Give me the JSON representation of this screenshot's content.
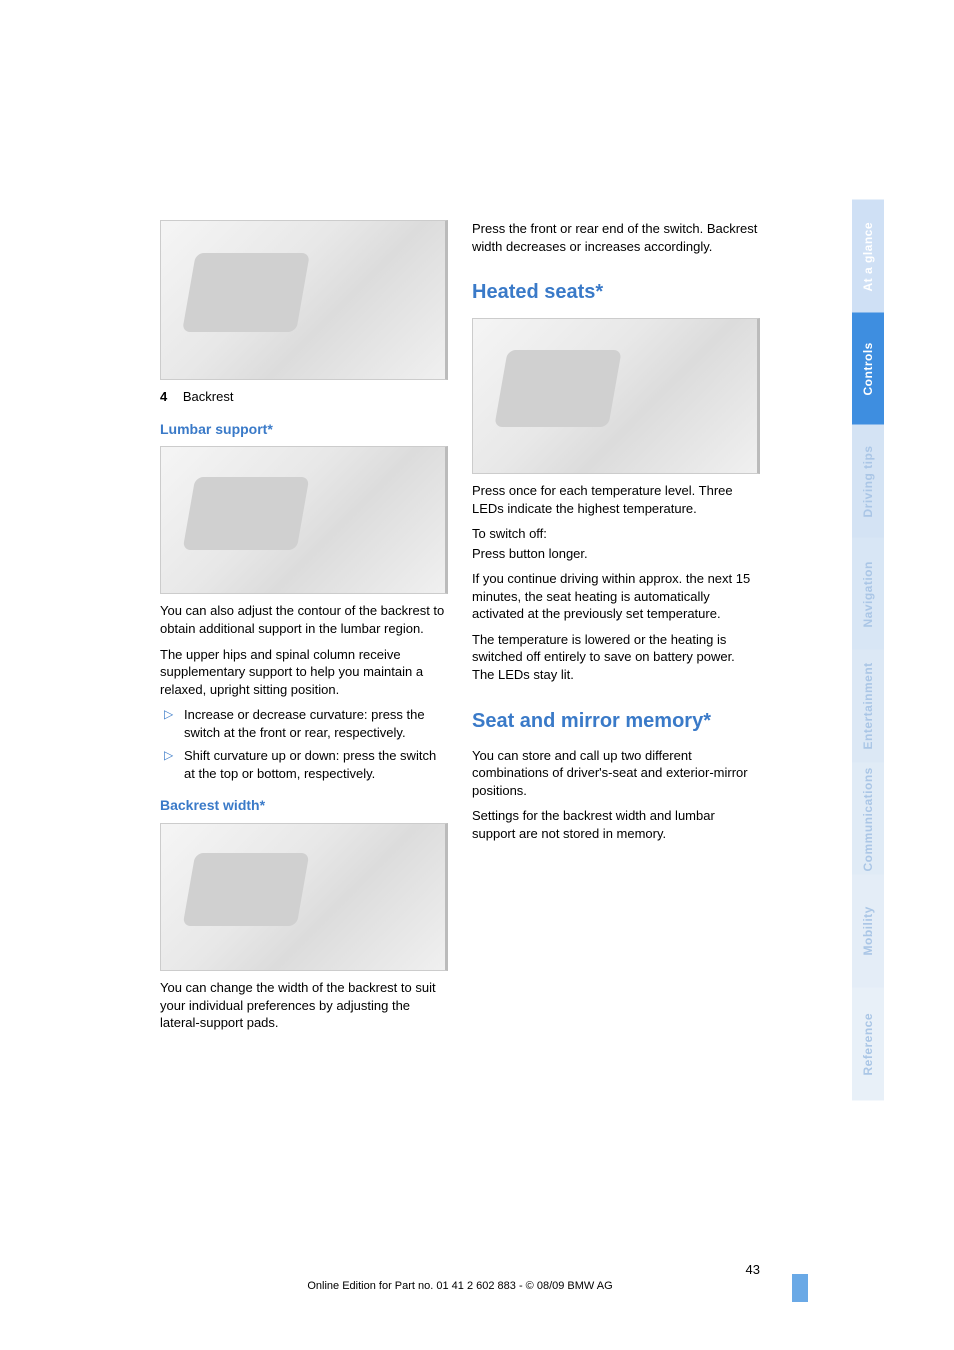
{
  "left": {
    "caption_num": "4",
    "caption_text": "Backrest",
    "lumbar_heading": "Lumbar support*",
    "lumbar_p1": "You can also adjust the contour of the backrest to obtain additional support in the lumbar region.",
    "lumbar_p2": "The upper hips and spinal column receive supplementary support to help you maintain a relaxed, upright sitting position.",
    "bullet1": "Increase or decrease curvature: press the switch at the front or rear, respectively.",
    "bullet2": "Shift curvature up or down: press the switch at the top or bottom, respectively.",
    "backrest_heading": "Backrest width*",
    "backrest_p": "You can change the width of the backrest to suit your individual preferences by adjusting the lateral-support pads."
  },
  "right": {
    "intro_p": "Press the front or rear end of the switch. Backrest width decreases or increases accordingly.",
    "heated_heading": "Heated seats*",
    "heated_p1": "Press once for each temperature level. Three LEDs indicate the highest temperature.",
    "heated_p2a": "To switch off:",
    "heated_p2b": "Press button longer.",
    "heated_p3": "If you continue driving within approx. the next 15 minutes, the seat heating is automatically activated at the previously set temperature.",
    "heated_p4": "The temperature is lowered or the heating is switched off entirely to save on battery power. The LEDs stay lit.",
    "memory_heading": "Seat and mirror memory*",
    "memory_p1": "You can store and call up two different combinations of driver's-seat and exterior-mirror positions.",
    "memory_p2": "Settings for the backrest width and lumbar support are not stored in memory."
  },
  "footer": {
    "page": "43",
    "line": "Online Edition for Part no. 01 41 2 602 883 - © 08/09 BMW AG"
  },
  "tabs": [
    {
      "label": "At a glance",
      "bg": "#cfe0f5",
      "fg": "#ffffff"
    },
    {
      "label": "Controls",
      "bg": "#3e8ee0",
      "fg": "#ffffff"
    },
    {
      "label": "Driving tips",
      "bg": "#d4e3f4",
      "fg": "#aac6e6"
    },
    {
      "label": "Navigation",
      "bg": "#d8e6f5",
      "fg": "#aac6e6"
    },
    {
      "label": "Entertainment",
      "bg": "#dce8f5",
      "fg": "#aac6e6"
    },
    {
      "label": "Communications",
      "bg": "#e0ebf6",
      "fg": "#aac6e6"
    },
    {
      "label": "Mobility",
      "bg": "#e4edf7",
      "fg": "#aac6e6"
    },
    {
      "label": "Reference",
      "bg": "#e8f0f8",
      "fg": "#aac6e6"
    }
  ]
}
